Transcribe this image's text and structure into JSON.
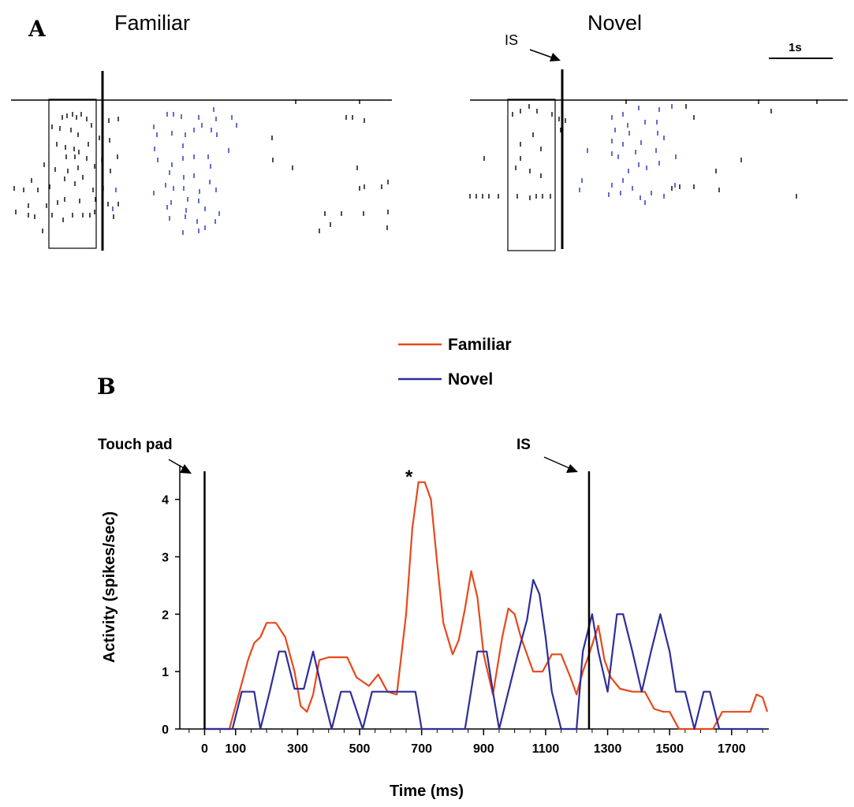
{
  "panel_a": {
    "letter": "A",
    "familiar_title": "Familiar",
    "novel_title": "Novel",
    "is_label": "IS",
    "scale_bar_label": "1s"
  },
  "panel_b": {
    "letter": "B",
    "touch_pad_label": "Touch pad",
    "is_label": "IS",
    "significance_marker": "*"
  },
  "colors": {
    "familiar": "#e8481c",
    "novel": "#2e2e9a",
    "novel_raster": "#1f2fb8",
    "axis": "#000000"
  },
  "chart_data": {
    "type": "line",
    "title": "",
    "xlabel": "Time (ms)",
    "ylabel": "Activity (spikes/sec)",
    "xlim": [
      -80,
      1820
    ],
    "ylim": [
      0,
      4.6
    ],
    "x_ticks": [
      0,
      100,
      300,
      500,
      700,
      900,
      1100,
      1300,
      1500,
      1700
    ],
    "y_ticks": [
      0,
      1,
      2,
      3,
      4
    ],
    "legend_position": "top-center",
    "event_markers": [
      {
        "name": "Touch pad",
        "x": 0
      },
      {
        "name": "IS",
        "x": 1240
      }
    ],
    "series": [
      {
        "name": "Familiar",
        "color": "#e8481c",
        "x": [
          0,
          80,
          110,
          140,
          160,
          180,
          200,
          230,
          260,
          290,
          310,
          330,
          350,
          370,
          400,
          430,
          460,
          490,
          530,
          560,
          590,
          620,
          650,
          670,
          690,
          710,
          730,
          750,
          770,
          800,
          820,
          840,
          860,
          880,
          900,
          930,
          960,
          980,
          1000,
          1020,
          1040,
          1060,
          1090,
          1120,
          1150,
          1180,
          1200,
          1220,
          1240,
          1270,
          1290,
          1310,
          1340,
          1380,
          1420,
          1450,
          1480,
          1500,
          1530,
          1570,
          1610,
          1640,
          1670,
          1700,
          1730,
          1760,
          1780,
          1800,
          1815
        ],
        "y": [
          0,
          0,
          0.6,
          1.2,
          1.5,
          1.6,
          1.85,
          1.85,
          1.6,
          1.0,
          0.4,
          0.3,
          0.6,
          1.2,
          1.25,
          1.25,
          1.25,
          0.9,
          0.75,
          0.95,
          0.65,
          0.6,
          2.0,
          3.5,
          4.3,
          4.3,
          4.0,
          2.9,
          1.85,
          1.3,
          1.55,
          2.1,
          2.75,
          2.3,
          1.3,
          0.6,
          1.6,
          2.1,
          2.0,
          1.6,
          1.3,
          1.0,
          1.0,
          1.3,
          1.3,
          0.9,
          0.6,
          1.0,
          1.3,
          1.8,
          1.2,
          0.9,
          0.7,
          0.65,
          0.65,
          0.35,
          0.3,
          0.3,
          0.0,
          0.0,
          0.0,
          0.0,
          0.3,
          0.3,
          0.3,
          0.3,
          0.6,
          0.55,
          0.3
        ]
      },
      {
        "name": "Novel",
        "color": "#2e2e9a",
        "x": [
          0,
          90,
          120,
          160,
          180,
          210,
          240,
          260,
          290,
          320,
          350,
          380,
          410,
          440,
          470,
          510,
          540,
          570,
          600,
          640,
          680,
          700,
          720,
          760,
          800,
          840,
          880,
          910,
          930,
          950,
          980,
          1010,
          1040,
          1060,
          1080,
          1100,
          1120,
          1150,
          1180,
          1200,
          1220,
          1250,
          1270,
          1300,
          1330,
          1350,
          1380,
          1410,
          1440,
          1470,
          1500,
          1520,
          1550,
          1580,
          1610,
          1630,
          1660,
          1690,
          1720,
          1750,
          1800
        ],
        "y": [
          0,
          0,
          0.65,
          0.65,
          0.0,
          0.65,
          1.35,
          1.35,
          0.7,
          0.7,
          1.35,
          0.65,
          0.0,
          0.65,
          0.65,
          0.0,
          0.65,
          0.65,
          0.65,
          0.65,
          0.65,
          0.0,
          0.0,
          0.0,
          0.0,
          0.0,
          1.35,
          1.35,
          0.65,
          0.0,
          0.65,
          1.3,
          1.9,
          2.6,
          2.35,
          1.6,
          0.65,
          0.0,
          0.0,
          0.0,
          1.35,
          2.0,
          1.35,
          0.65,
          2.0,
          2.0,
          1.35,
          0.65,
          1.35,
          2.0,
          1.35,
          0.65,
          0.65,
          0.0,
          0.65,
          0.65,
          0.0,
          0.0,
          0.0,
          0.0,
          0.0
        ]
      }
    ]
  }
}
